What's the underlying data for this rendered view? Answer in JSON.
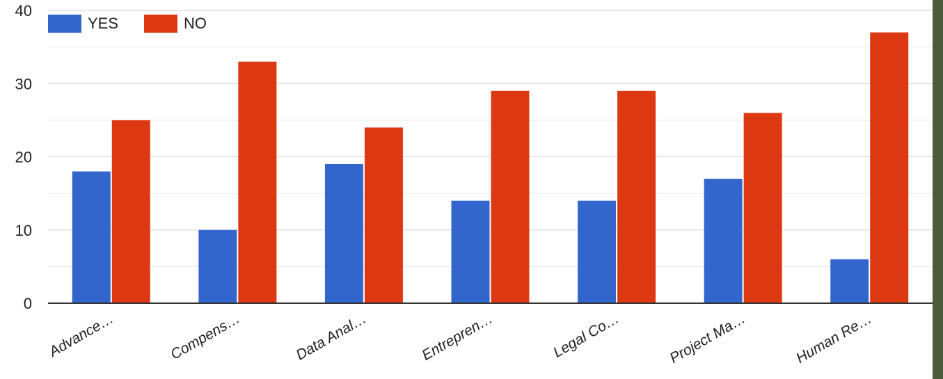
{
  "chart_data": {
    "type": "bar",
    "categories": [
      "Advance…",
      "Compens…",
      "Data Anal…",
      "Entrepren…",
      "Legal Co…",
      "Project Ma…",
      "Human Re…"
    ],
    "series": [
      {
        "name": "YES",
        "values": [
          18,
          10,
          19,
          14,
          14,
          17,
          6
        ],
        "color": "#3366cc"
      },
      {
        "name": "NO",
        "values": [
          25,
          33,
          24,
          29,
          29,
          26,
          37
        ],
        "color": "#dc3912"
      }
    ],
    "ylim": [
      0,
      40
    ],
    "yticks": [
      "0",
      "10",
      "20",
      "30",
      "40"
    ],
    "grid": true,
    "legend": "top-left"
  }
}
